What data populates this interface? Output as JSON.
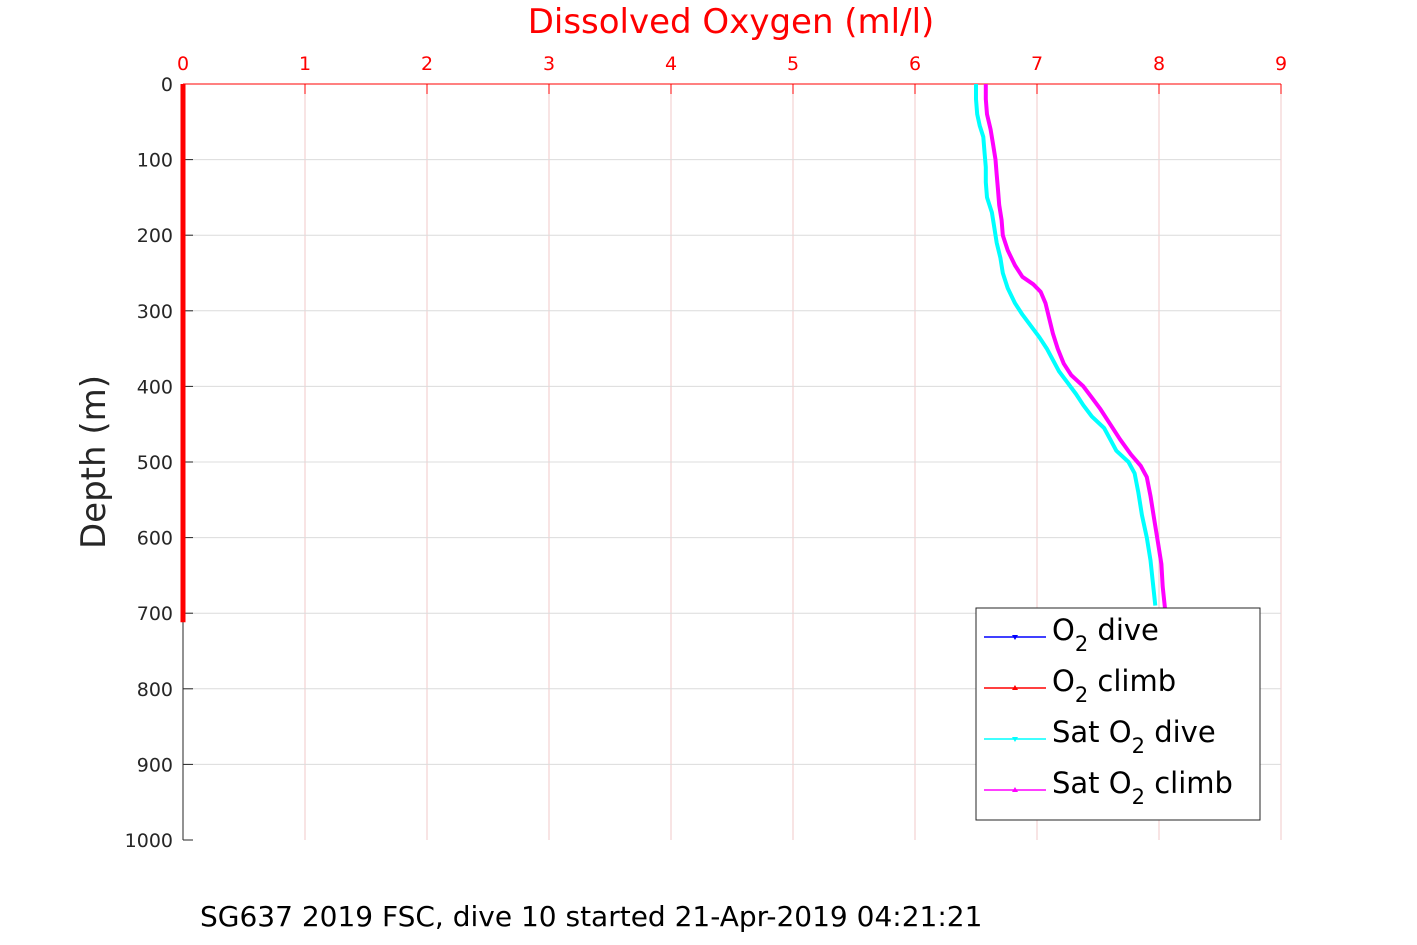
{
  "chart_data": {
    "type": "line",
    "title": "Dissolved Oxygen (ml/l)",
    "ylabel": "Depth (m)",
    "xlim": [
      0,
      9
    ],
    "ylim": [
      0,
      1000
    ],
    "y_reversed": true,
    "x_axis_position": "top",
    "x_ticks": [
      0,
      1,
      2,
      3,
      4,
      5,
      6,
      7,
      8,
      9
    ],
    "y_ticks": [
      0,
      100,
      200,
      300,
      400,
      500,
      600,
      700,
      800,
      900,
      1000
    ],
    "grid": true,
    "legend_position": "bottom-right",
    "caption": "SG637 2019 FSC, dive 10 started 21-Apr-2019 04:21:21",
    "series": [
      {
        "name": "O2 dive",
        "legend": {
          "pre": "O",
          "sub": "2",
          "post": " dive"
        },
        "color": "#0000ff",
        "marker": "down-triangle",
        "points": [
          [
            0.0,
            0
          ],
          [
            0.0,
            3
          ]
        ]
      },
      {
        "name": "O2 climb",
        "legend": {
          "pre": "O",
          "sub": "2",
          "post": " climb"
        },
        "color": "#ff0000",
        "marker": "up-triangle",
        "points": [
          [
            0.0,
            0
          ],
          [
            0.0,
            100
          ],
          [
            0.0,
            200
          ],
          [
            0.0,
            300
          ],
          [
            0.0,
            400
          ],
          [
            0.0,
            500
          ],
          [
            0.0,
            600
          ],
          [
            0.0,
            700
          ],
          [
            0.0,
            712
          ]
        ]
      },
      {
        "name": "Sat O2 dive",
        "legend": {
          "pre": "Sat O",
          "sub": "2",
          "post": " dive"
        },
        "color": "#00ffff",
        "marker": "down-triangle",
        "points": [
          [
            6.5,
            0
          ],
          [
            6.5,
            20
          ],
          [
            6.51,
            40
          ],
          [
            6.53,
            55
          ],
          [
            6.56,
            70
          ],
          [
            6.57,
            90
          ],
          [
            6.58,
            110
          ],
          [
            6.58,
            130
          ],
          [
            6.59,
            150
          ],
          [
            6.63,
            170
          ],
          [
            6.65,
            190
          ],
          [
            6.67,
            210
          ],
          [
            6.7,
            230
          ],
          [
            6.72,
            250
          ],
          [
            6.76,
            270
          ],
          [
            6.82,
            290
          ],
          [
            6.88,
            305
          ],
          [
            6.95,
            320
          ],
          [
            7.02,
            335
          ],
          [
            7.08,
            350
          ],
          [
            7.13,
            365
          ],
          [
            7.18,
            380
          ],
          [
            7.25,
            395
          ],
          [
            7.32,
            410
          ],
          [
            7.38,
            425
          ],
          [
            7.45,
            440
          ],
          [
            7.55,
            455
          ],
          [
            7.6,
            470
          ],
          [
            7.65,
            485
          ],
          [
            7.75,
            500
          ],
          [
            7.8,
            515
          ],
          [
            7.83,
            540
          ],
          [
            7.86,
            570
          ],
          [
            7.9,
            600
          ],
          [
            7.93,
            630
          ],
          [
            7.95,
            660
          ],
          [
            7.97,
            690
          ]
        ]
      },
      {
        "name": "Sat O2 climb",
        "legend": {
          "pre": "Sat O",
          "sub": "2",
          "post": " climb"
        },
        "color": "#ff00ff",
        "marker": "up-triangle",
        "points": [
          [
            6.58,
            0
          ],
          [
            6.58,
            20
          ],
          [
            6.59,
            40
          ],
          [
            6.62,
            60
          ],
          [
            6.64,
            80
          ],
          [
            6.66,
            100
          ],
          [
            6.67,
            120
          ],
          [
            6.68,
            140
          ],
          [
            6.69,
            160
          ],
          [
            6.71,
            180
          ],
          [
            6.72,
            200
          ],
          [
            6.76,
            220
          ],
          [
            6.82,
            240
          ],
          [
            6.88,
            255
          ],
          [
            6.97,
            265
          ],
          [
            7.03,
            275
          ],
          [
            7.07,
            290
          ],
          [
            7.1,
            310
          ],
          [
            7.13,
            330
          ],
          [
            7.17,
            350
          ],
          [
            7.22,
            370
          ],
          [
            7.28,
            385
          ],
          [
            7.38,
            400
          ],
          [
            7.45,
            415
          ],
          [
            7.52,
            430
          ],
          [
            7.6,
            450
          ],
          [
            7.68,
            470
          ],
          [
            7.77,
            490
          ],
          [
            7.85,
            505
          ],
          [
            7.9,
            520
          ],
          [
            7.93,
            545
          ],
          [
            7.96,
            575
          ],
          [
            7.99,
            605
          ],
          [
            8.02,
            635
          ],
          [
            8.03,
            665
          ],
          [
            8.05,
            695
          ]
        ]
      }
    ]
  }
}
